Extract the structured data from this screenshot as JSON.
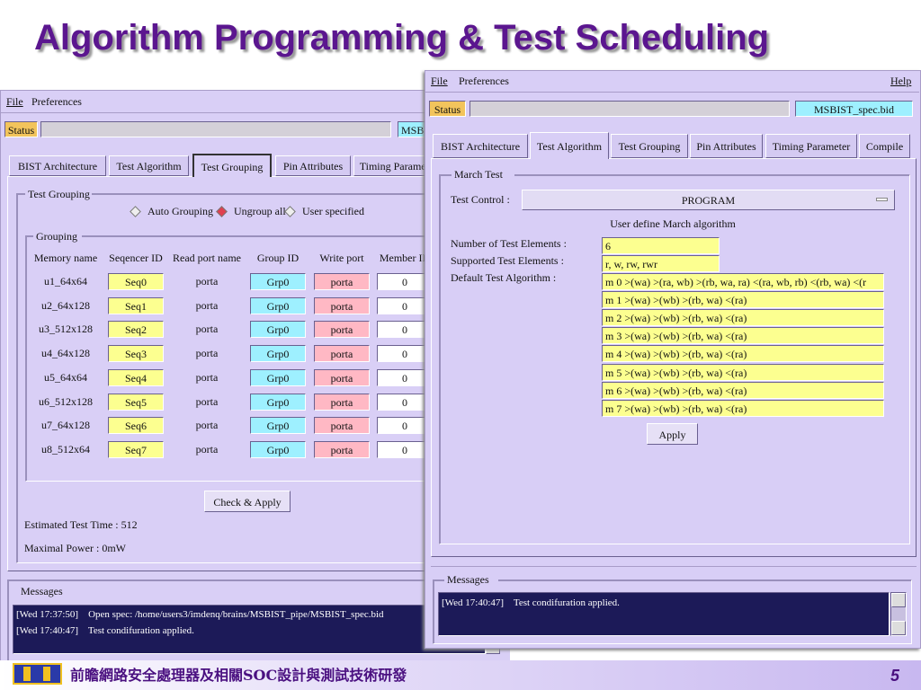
{
  "slide": {
    "title": "Algorithm Programming & Test Scheduling"
  },
  "back_window": {
    "menu": [
      "File",
      "Preferences"
    ],
    "status_label": "Status",
    "status_file": "MSBIST_spec.bid",
    "tabs": [
      "BIST Architecture",
      "Test Algorithm",
      "Test Grouping",
      "Pin Attributes",
      "Timing Parameter"
    ],
    "group_title": "Test Grouping",
    "radio_options": [
      "Auto Grouping",
      "Ungroup all",
      "User specified"
    ],
    "grouping": {
      "title": "Grouping",
      "columns": [
        "Memory name",
        "Seqencer ID",
        "Read port name",
        "Group ID",
        "Write port",
        "Member ID"
      ],
      "rows": [
        [
          "u1_64x64",
          "Seq0",
          "porta",
          "Grp0",
          "porta",
          "0"
        ],
        [
          "u2_64x128",
          "Seq1",
          "porta",
          "Grp0",
          "porta",
          "0"
        ],
        [
          "u3_512x128",
          "Seq2",
          "porta",
          "Grp0",
          "porta",
          "0"
        ],
        [
          "u4_64x128",
          "Seq3",
          "porta",
          "Grp0",
          "porta",
          "0"
        ],
        [
          "u5_64x64",
          "Seq4",
          "porta",
          "Grp0",
          "porta",
          "0"
        ],
        [
          "u6_512x128",
          "Seq5",
          "porta",
          "Grp0",
          "porta",
          "0"
        ],
        [
          "u7_64x128",
          "Seq6",
          "porta",
          "Grp0",
          "porta",
          "0"
        ],
        [
          "u8_512x64",
          "Seq7",
          "porta",
          "Grp0",
          "porta",
          "0"
        ]
      ]
    },
    "button": "Check & Apply",
    "estimated": "Estimated Test Time : 512",
    "power": "Maximal Power : 0mW",
    "messages_title": "Messages",
    "messages": [
      "[Wed 17:37:50]    Open spec: /home/users3/imdenq/brains/MSBIST_pipe/MSBIST_spec.bid",
      "[Wed 17:40:47]    Test condifuration applied."
    ]
  },
  "front_window": {
    "menu": [
      "File",
      "Preferences"
    ],
    "help": "Help",
    "status_label": "Status",
    "status_file": "MSBIST_spec.bid",
    "tabs": [
      "BIST Architecture",
      "Test Algorithm",
      "Test Grouping",
      "Pin Attributes",
      "Timing Parameter",
      "Compile"
    ],
    "group_title": "March Test",
    "test_control_label": "Test Control :",
    "test_control_value": "PROGRAM",
    "subtitle": "User define March algorithm",
    "labels": [
      "Number of Test Elements :",
      "Supported Test Elements :",
      "Default Test Algorithm :"
    ],
    "num_elements": "6",
    "supported": "r, w, rw, rwr",
    "algorithms": [
      "m 0 >(wa) >(ra, wb) >(rb, wa, ra) <(ra, wb, rb) <(rb, wa) <(r",
      "m 1 >(wa) >(wb) >(rb, wa) <(ra)",
      "m 2 >(wa) >(wb) >(rb, wa) <(ra)",
      "m 3 >(wa) >(wb) >(rb, wa) <(ra)",
      "m 4 >(wa) >(wb) >(rb, wa) <(ra)",
      "m 5 >(wa) >(wb) >(rb, wa) <(ra)",
      "m 6 >(wa) >(wb) >(rb, wa) <(ra)",
      "m 7 >(wa) >(wb) >(rb, wa) <(ra)"
    ],
    "button": "Apply",
    "messages_title": "Messages",
    "messages": [
      "[Wed 17:40:47]    Test condifuration applied."
    ]
  },
  "footer": {
    "text": "前瞻網路安全處理器及相關SOC設計與測試技術研發",
    "page": "5"
  }
}
